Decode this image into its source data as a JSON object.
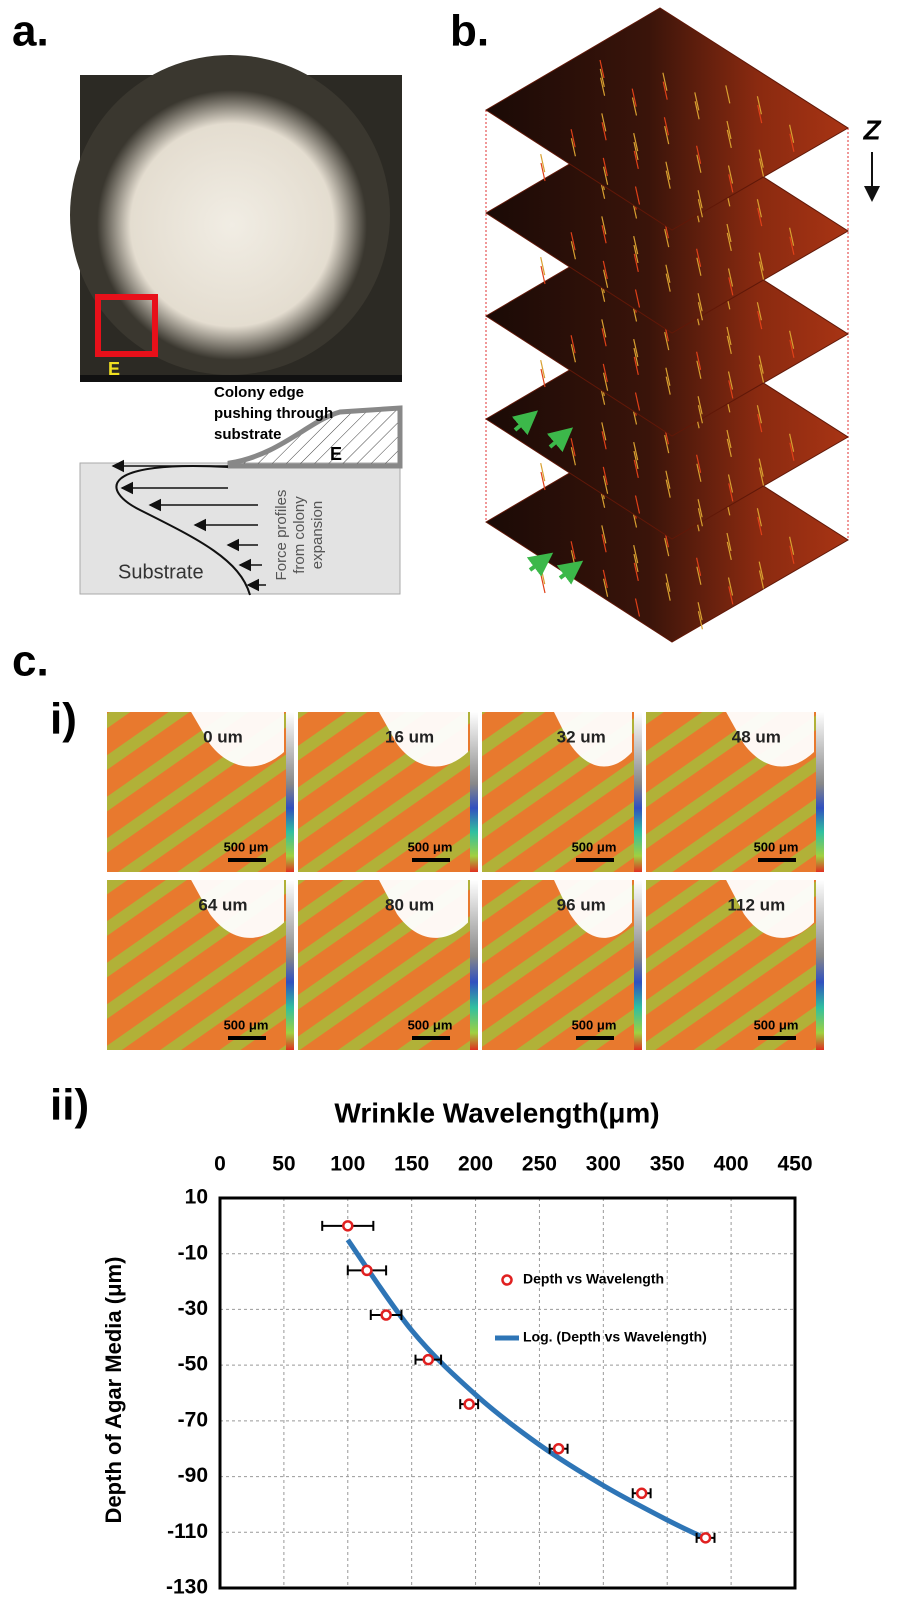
{
  "panel_labels": {
    "a": "a.",
    "b": "b.",
    "c": "c.",
    "ci": "i)",
    "cii": "ii)"
  },
  "panel_a": {
    "box_label": "E",
    "edge_text": [
      "Colony edge",
      "pushing through",
      "substrate"
    ],
    "diagram_label": "E",
    "substrate": "Substrate",
    "force_text": [
      "Force profiles",
      "from colony",
      "expansion"
    ]
  },
  "panel_b": {
    "axis_label": "Z"
  },
  "panel_c": {
    "depths": [
      "0 um",
      "16 um",
      "32 um",
      "48 um",
      "64 um",
      "80 um",
      "96 um",
      "112 um"
    ],
    "scale_bar": "500 μm"
  },
  "chart_data": {
    "type": "scatter",
    "title": "Wrinkle Wavelength(μm)",
    "y_label": "Depth of Agar Media (μm)",
    "x_axis_side": "top",
    "xlim": [
      0,
      450
    ],
    "xticks": [
      0,
      50,
      100,
      150,
      200,
      250,
      300,
      350,
      400,
      450
    ],
    "ylim": [
      -130,
      10
    ],
    "yticks": [
      10,
      -10,
      -30,
      -50,
      -70,
      -90,
      -110,
      -130
    ],
    "grid": true,
    "legend": "center right",
    "series": [
      {
        "name": "Depth vs Wavelength",
        "color": "#e02020",
        "x": [
          100,
          115,
          130,
          163,
          195,
          265,
          330,
          380
        ],
        "values": [
          0,
          -16,
          -32,
          -48,
          -64,
          -80,
          -96,
          -112
        ],
        "xerr": [
          20,
          15,
          12,
          10,
          7,
          7,
          7,
          7
        ]
      },
      {
        "name": "Log. (Depth vs Wavelength)",
        "color": "#2e75b6",
        "type": "line",
        "x": [
          100,
          150,
          200,
          250,
          300,
          350,
          380
        ],
        "values": [
          -5,
          -37.5,
          -60.6,
          -78.6,
          -93.2,
          -105.6,
          -112.2
        ]
      }
    ]
  }
}
